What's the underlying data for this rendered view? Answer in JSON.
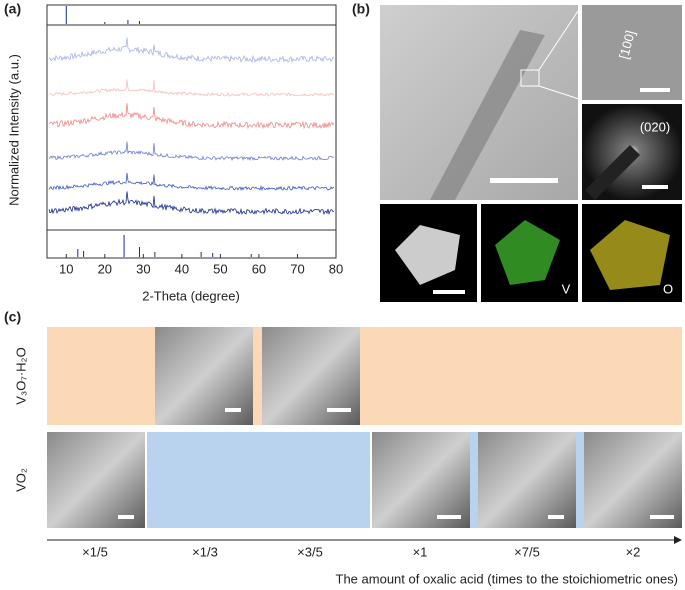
{
  "panels": {
    "a": "(a)",
    "b": "(b)",
    "c": "(c)"
  },
  "xrd": {
    "type": "line",
    "x_label": "2-Theta (degree)",
    "y_label": "Normalized Intensity (a.u.)",
    "xlim": [
      5,
      80
    ],
    "xticks": [
      10,
      20,
      30,
      40,
      50,
      60,
      70,
      80
    ]
  },
  "tem": {
    "zone_axis": "[100]",
    "diffraction": "(020)",
    "maps": [
      "V",
      "O"
    ]
  },
  "sem": {
    "rows": [
      "V₃O₇·H₂O",
      "VO₂"
    ],
    "categories": [
      "×1/5",
      "×1/3",
      "×3/5",
      "×1",
      "×7/5",
      "×2"
    ],
    "axis_label": "The amount of oxalic acid (times to the stoichiometric ones)"
  }
}
